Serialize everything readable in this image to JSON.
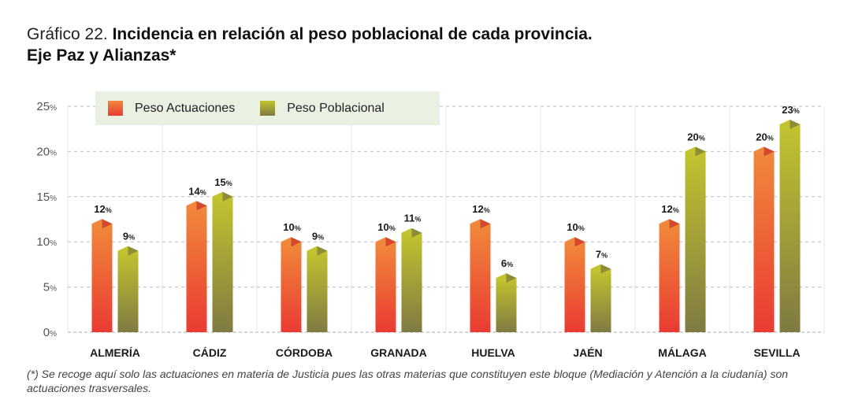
{
  "title": {
    "prefix": "Gráfico 22.",
    "line1": "Incidencia en relación al peso poblacional de cada provincia.",
    "line2": "Eje Paz y Alianzas*"
  },
  "legend": [
    {
      "label": "Peso Actuaciones",
      "swatch": "orange"
    },
    {
      "label": "Peso Poblacional",
      "swatch": "green"
    }
  ],
  "footnote": "(*) Se recoge aquí solo las actuaciones en materia de Justicia pues las otras materias que constituyen este bloque (Mediación y Atención a la ciudanía) son actuaciones trasversales.",
  "colors": {
    "actuaciones_top": "#f0883a",
    "actuaciones_bottom": "#ea3b32",
    "poblacional_top": "#c2c32f",
    "poblacional_bottom": "#7f7a42"
  },
  "chart_data": {
    "type": "bar",
    "categories": [
      "ALMERÍA",
      "CÁDIZ",
      "CÓRDOBA",
      "GRANADA",
      "HUELVA",
      "JAÉN",
      "MÁLAGA",
      "SEVILLA"
    ],
    "series": [
      {
        "name": "Peso Actuaciones",
        "values": [
          12,
          14,
          10,
          10,
          12,
          10,
          12,
          20
        ],
        "labels": [
          "12",
          "14",
          "10",
          "10",
          "12",
          "10",
          "12",
          "20"
        ]
      },
      {
        "name": "Peso Poblacional",
        "values": [
          9,
          15,
          9,
          11,
          6,
          7,
          20,
          23
        ],
        "labels": [
          "9",
          "15",
          "9",
          "11",
          "6",
          "7",
          "20",
          "23"
        ]
      }
    ],
    "ylim": [
      0,
      25
    ],
    "yticks": [
      "0",
      "5",
      "10",
      "15",
      "20",
      "25"
    ],
    "unit": "%",
    "grid": true,
    "legend_position": "top-left"
  }
}
